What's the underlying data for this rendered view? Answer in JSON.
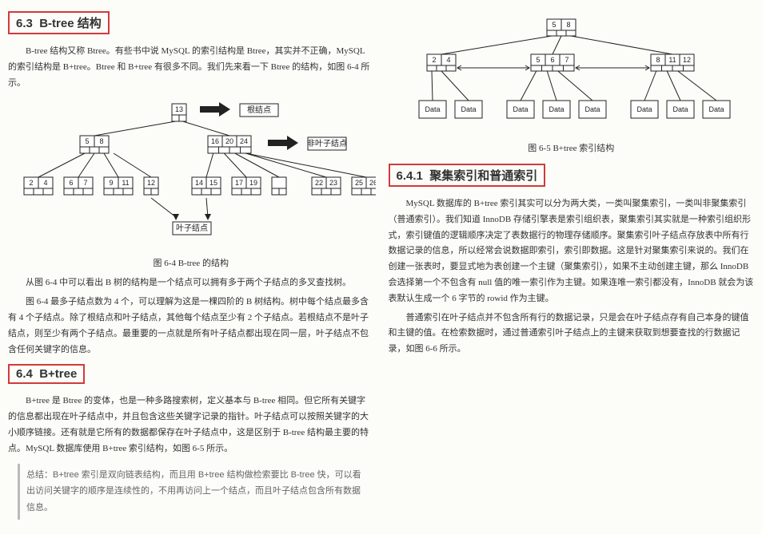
{
  "left": {
    "h63": {
      "num": "6.3",
      "title": "B-tree 结构"
    },
    "p63_1": "B-tree 结构又称 Btree。有些书中说 MySQL 的索引结构是 Btree，其实并不正确，MySQL 的索引结构是 B+tree。Btree 和 B+tree 有很多不同。我们先来看一下 Btree 的结构，如图 6-4 所示。",
    "fig64_caption": "图 6-4  B-tree 的结构",
    "fig64_labels": {
      "root": "根结点",
      "nonleaf": "非叶子结点",
      "leaf": "叶子结点"
    },
    "btree": {
      "root": [
        13
      ],
      "mid": [
        [
          5,
          8
        ],
        [
          16,
          20,
          24
        ]
      ],
      "leaves": [
        [
          2,
          4
        ],
        [
          6,
          7
        ],
        [
          9,
          11
        ],
        [
          12
        ],
        [
          14,
          15
        ],
        [
          17,
          19
        ],
        [],
        [
          22,
          23
        ],
        [
          25,
          26
        ]
      ],
      "leaf_x": [
        20,
        70,
        120,
        170,
        230,
        280,
        330,
        380,
        430
      ],
      "colors": {
        "stroke": "#222222",
        "fill": "#ffffff",
        "arrow": "#222222"
      }
    },
    "p63_2": "从图 6-4 中可以看出 B 树的结构是一个结点可以拥有多于两个子结点的多叉查找树。",
    "p63_3": "图 6-4 最多子结点数为 4 个，可以理解为这是一棵四阶的 B 树结构。树中每个结点最多含有 4 个子结点。除了根结点和叶子结点，其他每个结点至少有 2 个子结点。若根结点不是叶子结点，则至少有两个子结点。最重要的一点就是所有叶子结点都出现在同一层，叶子结点不包含任何关键字的信息。",
    "h64": {
      "num": "6.4",
      "title": "B+tree"
    },
    "p64_1": "B+tree 是 Btree 的变体，也是一种多路搜索树，定义基本与 B-tree 相同。但它所有关键字的信息都出现在叶子结点中，并且包含这些关键字记录的指针。叶子结点可以按照关键字的大小顺序链接。还有就是它所有的数据都保存在叶子结点中，这是区别于 B-tree 结构最主要的特点。MySQL 数据库使用 B+tree 索引结构，如图 6-5 所示。",
    "quote": "总结：B+tree 索引是双向链表结构，而且用 B+tree 结构做检索要比 B-tree 快，可以看出访问关键字的顺序是连续性的，不用再访问上一个结点，而且叶子结点包含所有数据信息。"
  },
  "right": {
    "fig65_caption": "图 6-5  B+tree 索引结构",
    "bptree": {
      "root": [
        5,
        8
      ],
      "mid": [
        [
          2,
          4
        ],
        [
          5,
          6,
          7
        ],
        [
          8,
          11,
          12
        ]
      ],
      "data_label": "Data",
      "data_x": [
        30,
        75,
        140,
        185,
        230,
        295,
        340,
        385
      ],
      "mid_x": [
        40,
        170,
        320
      ],
      "colors": {
        "stroke": "#222222",
        "fill": "#ffffff"
      }
    },
    "h641": {
      "num": "6.4.1",
      "title": "聚集索引和普通索引"
    },
    "p641_1": "MySQL 数据库的 B+tree 索引其实可以分为两大类，一类叫聚集索引，一类叫非聚集索引（普通索引）。我们知道 InnoDB 存储引擎表是索引组织表，聚集索引其实就是一种索引组织形式，索引键值的逻辑顺序决定了表数据行的物理存储顺序。聚集索引叶子结点存放表中所有行数据记录的信息，所以经常会说数据即索引，索引即数据。这是针对聚集索引来说的。我们在创建一张表时，要显式地为表创建一个主键（聚集索引），如果不主动创建主键，那么 InnoDB 会选择第一个不包含有 null 值的唯一索引作为主键。如果连唯一索引都没有，InnoDB 就会为该表默认生成一个 6 字节的 rowid 作为主键。",
    "p641_2": "普通索引在叶子结点并不包含所有行的数据记录，只是会在叶子结点存有自己本身的键值和主键的值。在检索数据时，通过普通索引叶子结点上的主键来获取到想要查找的行数据记录，如图 6-6 所示。"
  }
}
